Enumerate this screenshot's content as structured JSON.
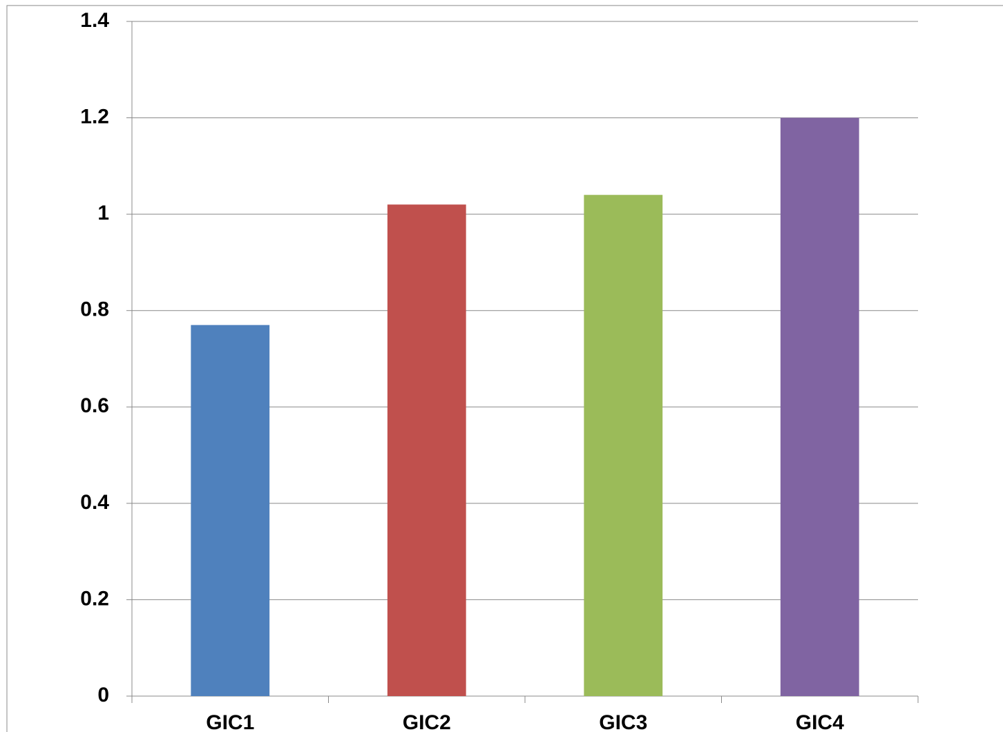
{
  "chart_data": {
    "type": "bar",
    "categories": [
      "GIC1",
      "GIC2",
      "GIC3",
      "GIC4"
    ],
    "values": [
      0.77,
      1.02,
      1.04,
      1.2
    ],
    "colors": [
      "#4f81bd",
      "#c0504d",
      "#9bbb59",
      "#8064a2"
    ],
    "ylim": [
      0,
      1.4
    ],
    "yticks": [
      0,
      0.2,
      0.4,
      0.6,
      0.8,
      1,
      1.2,
      1.4
    ],
    "grid": true
  }
}
